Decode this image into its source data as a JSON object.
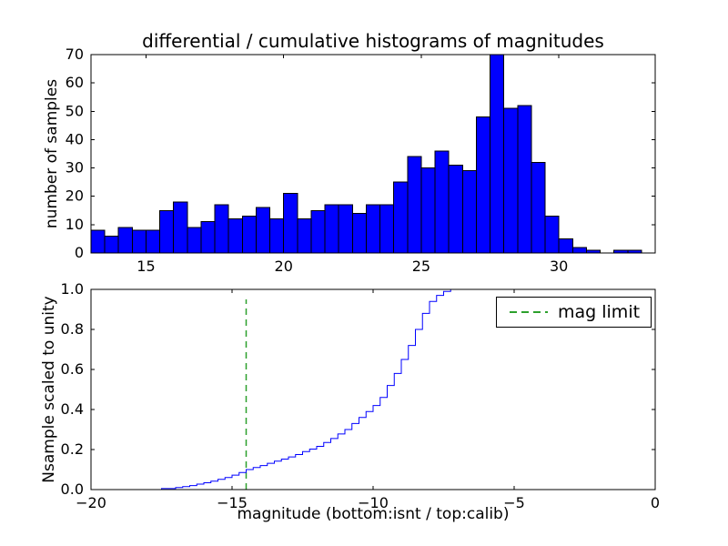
{
  "figure": {
    "background": "#ffffff",
    "frame_color": "#000000"
  },
  "chart_data": [
    {
      "type": "bar",
      "subtype": "histogram",
      "title": "differential / cumulative histograms of magnitudes",
      "xlabel": "",
      "ylabel": "number of samples",
      "xlim": [
        13.0,
        33.5
      ],
      "ylim": [
        0,
        70
      ],
      "xticks": [
        15,
        20,
        25,
        30
      ],
      "xtick_labels": [
        "15",
        "20",
        "25",
        "30"
      ],
      "yticks": [
        0,
        10,
        20,
        30,
        40,
        50,
        60,
        70
      ],
      "ytick_labels": [
        "0",
        "10",
        "20",
        "30",
        "40",
        "50",
        "60",
        "70"
      ],
      "bin_start": 13.0,
      "bin_width": 0.5,
      "values": [
        8,
        6,
        9,
        8,
        8,
        15,
        18,
        9,
        11,
        17,
        12,
        13,
        16,
        12,
        21,
        12,
        15,
        17,
        17,
        14,
        17,
        17,
        25,
        34,
        30,
        36,
        31,
        29,
        48,
        70,
        51,
        52,
        32,
        13,
        5,
        2,
        1,
        0,
        1,
        1,
        0
      ],
      "bar_color": "#0000ff",
      "bar_edge_color": "#000000",
      "grid": false
    },
    {
      "type": "line",
      "subtype": "cumulative-step",
      "title": "",
      "xlabel": "magnitude (bottom:isnt / top:calib)",
      "ylabel": "Nsample scaled to unity",
      "xlim": [
        -20,
        0
      ],
      "ylim": [
        0.0,
        1.0
      ],
      "xticks": [
        -20,
        -15,
        -10,
        -5,
        0
      ],
      "xtick_labels": [
        "−20",
        "−15",
        "−10",
        "−5",
        "0"
      ],
      "yticks": [
        0.0,
        0.2,
        0.4,
        0.6,
        0.8,
        1.0
      ],
      "ytick_labels": [
        "0.0",
        "0.2",
        "0.4",
        "0.6",
        "0.8",
        "1.0"
      ],
      "line_color": "#0000ff",
      "steps": [
        [
          -20.0,
          0.0
        ],
        [
          -17.5,
          0.005
        ],
        [
          -17.0,
          0.01
        ],
        [
          -16.75,
          0.015
        ],
        [
          -16.5,
          0.02
        ],
        [
          -16.25,
          0.027
        ],
        [
          -16.0,
          0.034
        ],
        [
          -15.75,
          0.042
        ],
        [
          -15.5,
          0.051
        ],
        [
          -15.25,
          0.06
        ],
        [
          -15.0,
          0.072
        ],
        [
          -14.75,
          0.085
        ],
        [
          -14.5,
          0.1
        ],
        [
          -14.25,
          0.11
        ],
        [
          -14.0,
          0.12
        ],
        [
          -13.75,
          0.131
        ],
        [
          -13.5,
          0.142
        ],
        [
          -13.25,
          0.152
        ],
        [
          -13.0,
          0.163
        ],
        [
          -12.75,
          0.175
        ],
        [
          -12.5,
          0.19
        ],
        [
          -12.25,
          0.202
        ],
        [
          -12.0,
          0.216
        ],
        [
          -11.75,
          0.235
        ],
        [
          -11.5,
          0.255
        ],
        [
          -11.25,
          0.278
        ],
        [
          -11.0,
          0.3
        ],
        [
          -10.75,
          0.33
        ],
        [
          -10.5,
          0.36
        ],
        [
          -10.25,
          0.39
        ],
        [
          -10.0,
          0.42
        ],
        [
          -9.75,
          0.46
        ],
        [
          -9.5,
          0.52
        ],
        [
          -9.25,
          0.58
        ],
        [
          -9.0,
          0.65
        ],
        [
          -8.75,
          0.72
        ],
        [
          -8.5,
          0.8
        ],
        [
          -8.25,
          0.88
        ],
        [
          -8.0,
          0.94
        ],
        [
          -7.75,
          0.97
        ],
        [
          -7.5,
          0.99
        ],
        [
          -7.25,
          1.0
        ],
        [
          0.0,
          1.0
        ]
      ],
      "vline": {
        "x": -14.5,
        "ymin": 0.0,
        "ymax": 0.95,
        "color": "#2ca02c",
        "style": "dashed"
      },
      "legend": {
        "label": "mag limit",
        "position": "upper right",
        "sample_color": "#2ca02c",
        "sample_style": "dashed"
      },
      "grid": false
    }
  ]
}
